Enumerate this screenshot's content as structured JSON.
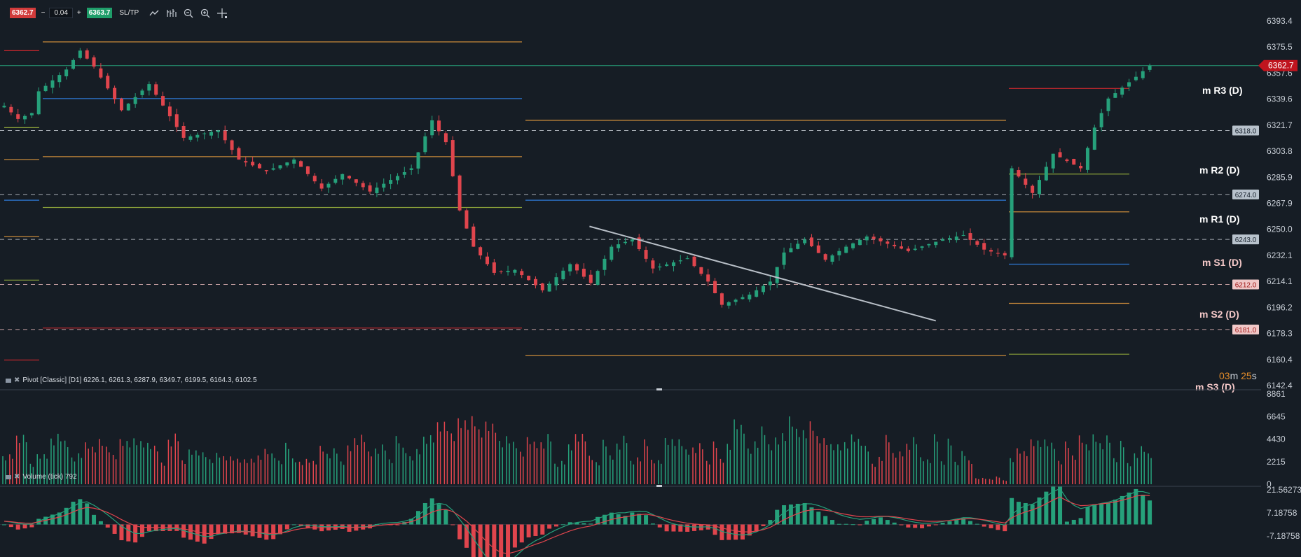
{
  "toolbar": {
    "bid": "6362.7",
    "minus": "−",
    "lot": "0.04",
    "plus": "+",
    "ask": "6363.7",
    "sltp": "SL/TP"
  },
  "indicators": {
    "pivot_label": "Pivot [Classic] [D1] 6226.1, 6261.3, 6287.9, 6349.7, 6199.5, 6164.3, 6102.5",
    "volume_label": "Volume (tick) 792"
  },
  "timer": {
    "minutes": "03",
    "m": "m",
    "seconds": "25",
    "s": "s"
  },
  "colors": {
    "background": "#161d25",
    "up": "#26a17b",
    "down": "#e0454d",
    "orange": "#c88a3a",
    "blue": "#2f7ad6",
    "olive": "#8aa03a",
    "red_level": "#c0272d",
    "green_hline": "#26a17b",
    "trendline": "#b8bfc7"
  },
  "chart_data": [
    {
      "type": "candlestick",
      "title": "",
      "price_axis": {
        "ylim": [
          6142.4,
          6393.4
        ],
        "ticks": [
          "6393.4",
          "6375.5",
          "6357.6",
          "6339.6",
          "6321.7",
          "6303.8",
          "6285.9",
          "6267.9",
          "6250.0",
          "6232.1",
          "6214.1",
          "6196.2",
          "6178.3",
          "6160.4",
          "6142.4"
        ]
      },
      "current_price": "6362.7",
      "alert_levels": [
        "6318.0",
        "6274.0",
        "6243.0",
        "6212.0",
        "6181.0"
      ],
      "pivot_levels_labels": [
        "m R3 (D)",
        "m R2 (D)",
        "m R1 (D)",
        "m S1 (D)",
        "m S2 (D)",
        "m S3 (D)"
      ],
      "pivot_values": {
        "P": 6226.1,
        "R1": 6261.3,
        "R2": 6287.9,
        "R3": 6349.7,
        "S1": 6199.5,
        "S2": 6164.3,
        "S3": 6102.5
      },
      "close_path": [
        {
          "t": 0,
          "v": 6335
        },
        {
          "t": 2,
          "v": 6326
        },
        {
          "t": 4,
          "v": 6330
        },
        {
          "t": 5,
          "v": 6345
        },
        {
          "t": 9,
          "v": 6360
        },
        {
          "t": 11,
          "v": 6373
        },
        {
          "t": 13,
          "v": 6362
        },
        {
          "t": 17,
          "v": 6332
        },
        {
          "t": 21,
          "v": 6350
        },
        {
          "t": 26,
          "v": 6313
        },
        {
          "t": 31,
          "v": 6318
        },
        {
          "t": 34,
          "v": 6298
        },
        {
          "t": 38,
          "v": 6290
        },
        {
          "t": 42,
          "v": 6298
        },
        {
          "t": 46,
          "v": 6278
        },
        {
          "t": 49,
          "v": 6288
        },
        {
          "t": 53,
          "v": 6276
        },
        {
          "t": 59,
          "v": 6292
        },
        {
          "t": 62,
          "v": 6325
        },
        {
          "t": 64,
          "v": 6310
        },
        {
          "t": 66,
          "v": 6263
        },
        {
          "t": 68,
          "v": 6238
        },
        {
          "t": 71,
          "v": 6220
        },
        {
          "t": 74,
          "v": 6222
        },
        {
          "t": 78,
          "v": 6208
        },
        {
          "t": 82,
          "v": 6226
        },
        {
          "t": 85,
          "v": 6213
        },
        {
          "t": 88,
          "v": 6238
        },
        {
          "t": 91,
          "v": 6243
        },
        {
          "t": 94,
          "v": 6223
        },
        {
          "t": 99,
          "v": 6230
        },
        {
          "t": 102,
          "v": 6214
        },
        {
          "t": 104,
          "v": 6198
        },
        {
          "t": 108,
          "v": 6205
        },
        {
          "t": 111,
          "v": 6214
        },
        {
          "t": 113,
          "v": 6234
        },
        {
          "t": 116,
          "v": 6243
        },
        {
          "t": 119,
          "v": 6229
        },
        {
          "t": 122,
          "v": 6238
        },
        {
          "t": 125,
          "v": 6245
        },
        {
          "t": 131,
          "v": 6235
        },
        {
          "t": 136,
          "v": 6243
        },
        {
          "t": 139,
          "v": 6246
        },
        {
          "t": 142,
          "v": 6236
        },
        {
          "t": 145,
          "v": 6232
        },
        {
          "t": 146,
          "v": 6292
        },
        {
          "t": 149,
          "v": 6275
        },
        {
          "t": 152,
          "v": 6302
        },
        {
          "t": 156,
          "v": 6292
        },
        {
          "t": 158,
          "v": 6320
        },
        {
          "t": 160,
          "v": 6340
        },
        {
          "t": 164,
          "v": 6355
        },
        {
          "t": 166,
          "v": 6362.7
        }
      ],
      "trendline": {
        "from": {
          "t": 84,
          "v": 6252
        },
        "to": {
          "t": 135,
          "v": 6187
        }
      },
      "current_price_line": 6362.7
    },
    {
      "type": "bar",
      "title": "",
      "ylabel": "Volume (tick)",
      "ylim": [
        0,
        8861
      ],
      "ticks": [
        "8861",
        "6645",
        "4430",
        "2215",
        "0"
      ],
      "last_value": 792
    },
    {
      "type": "histogram",
      "title": "",
      "ylim": [
        -7.18758,
        21.56273
      ],
      "ticks": [
        "21.56273",
        "7.18758",
        "-7.18758"
      ]
    }
  ]
}
